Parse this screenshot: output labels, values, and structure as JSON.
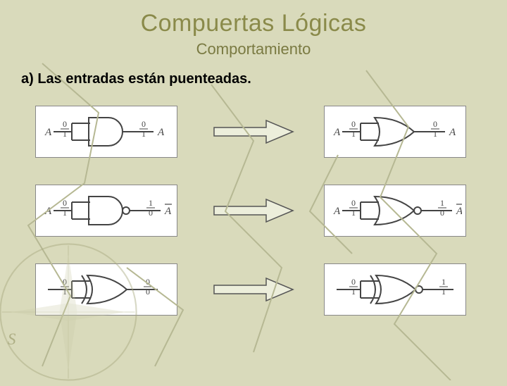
{
  "title": "Compuertas Lógicas",
  "subtitle": "Comportamiento",
  "section_label": "a) Las entradas están puenteadas.",
  "colors": {
    "background": "#d9dabb",
    "title_color": "#8a8a4a",
    "subtitle_color": "#7a7a42",
    "text_color": "#222222",
    "box_bg": "#ffffff",
    "box_border": "#888888",
    "gate_stroke": "#444444",
    "arrow_fill": "#eceedb",
    "arrow_stroke": "#555555",
    "bg_line_stroke": "#b6b893"
  },
  "fonts": {
    "title_size": 34,
    "subtitle_size": 22,
    "section_size": 20,
    "label_family": "Times New Roman"
  },
  "gates": [
    {
      "left": {
        "type": "AND",
        "in_label": "A",
        "in_top": "0",
        "in_bot": "1",
        "out_top": "0",
        "out_bot": "1",
        "out_label": "A",
        "out_bar": false
      },
      "right": {
        "type": "OR",
        "in_label": "A",
        "in_top": "0",
        "in_bot": "1",
        "out_top": "0",
        "out_bot": "1",
        "out_label": "A",
        "out_bar": false
      }
    },
    {
      "left": {
        "type": "NAND",
        "in_label": "A",
        "in_top": "0",
        "in_bot": "1",
        "out_top": "1",
        "out_bot": "0",
        "out_label": "A",
        "out_bar": true
      },
      "right": {
        "type": "NOR",
        "in_label": "A",
        "in_top": "0",
        "in_bot": "1",
        "out_top": "1",
        "out_bot": "0",
        "out_label": "A",
        "out_bar": true
      }
    },
    {
      "left": {
        "type": "XOR",
        "in_label": "",
        "in_top": "0",
        "in_bot": "1",
        "out_top": "0",
        "out_bot": "0",
        "out_label": "",
        "out_bar": false
      },
      "right": {
        "type": "XNOR",
        "in_label": "",
        "in_top": "0",
        "in_bot": "1",
        "out_top": "1",
        "out_bot": "1",
        "out_label": "",
        "out_bar": false
      }
    }
  ],
  "compass": {
    "label_S": "S"
  }
}
